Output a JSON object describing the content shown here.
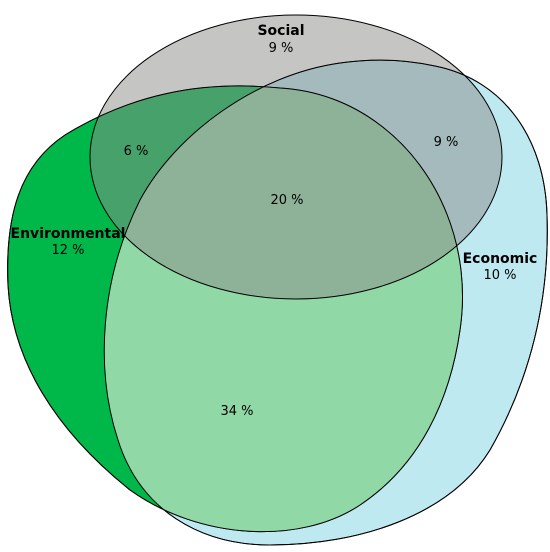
{
  "sets": {
    "social": {
      "label": "Social",
      "value": "9 %",
      "color": "#8c8c8a"
    },
    "environmental": {
      "label": "Environmental",
      "value": "12 %",
      "color": "#00b84a"
    },
    "economic": {
      "label": "Economic",
      "value": "10 %",
      "color": "#bfe9f1"
    }
  },
  "overlap_color": "#90d9a6",
  "intersections": {
    "social_environmental": "6 %",
    "social_economic": "9 %",
    "all_three": "20 %",
    "environmental_economic": "34 %"
  }
}
